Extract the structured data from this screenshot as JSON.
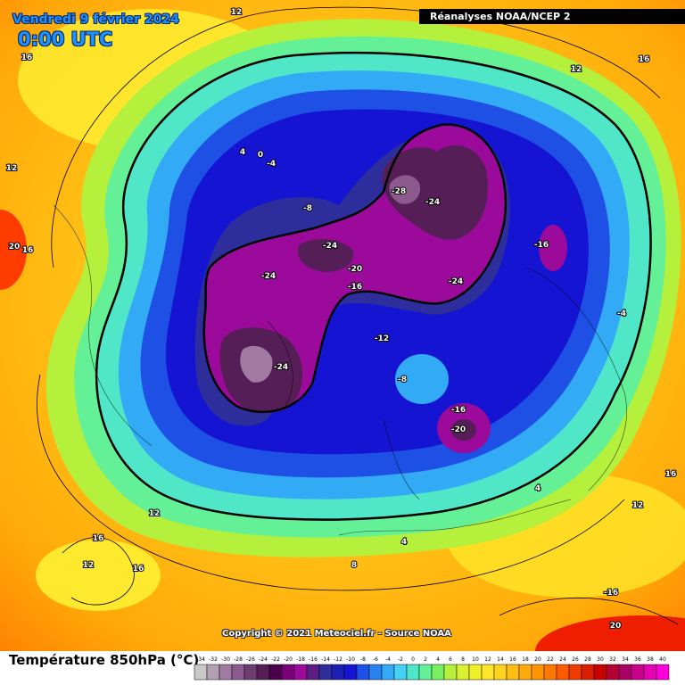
{
  "header": {
    "date": "Vendredi 9 février 2024",
    "time": "0:00 UTC",
    "source": "Réanalyses NOAA/NCEP 2"
  },
  "footer": {
    "title": "Température 850hPa (°C)",
    "copyright": "Copyright © 2021 Meteociel.fr - Source NOAA"
  },
  "legend_scale": {
    "values": [
      -34,
      -32,
      -30,
      -28,
      -26,
      -24,
      -22,
      -20,
      -18,
      -16,
      -14,
      -12,
      -10,
      -8,
      -6,
      -4,
      -2,
      0,
      2,
      4,
      6,
      8,
      10,
      12,
      14,
      16,
      18,
      20,
      22,
      24,
      26,
      28,
      30,
      32,
      34,
      36,
      38,
      40
    ],
    "colors": [
      "#c8c8c8",
      "#b4a0b4",
      "#a07aa0",
      "#8c5a8c",
      "#6e3c6e",
      "#561e56",
      "#4a004a",
      "#7a007a",
      "#9c0a9c",
      "#5a1e82",
      "#2d2d9c",
      "#1e1eb4",
      "#1414d2",
      "#1e50e6",
      "#2882f0",
      "#32aaf5",
      "#46d2f5",
      "#50e6c8",
      "#64f096",
      "#78f064",
      "#b4f03c",
      "#dcf032",
      "#f0f028",
      "#ffe628",
      "#ffd21e",
      "#ffbe14",
      "#ffaa0a",
      "#ff9600",
      "#ff7800",
      "#ff5a00",
      "#f03c00",
      "#dc1e00",
      "#c80000",
      "#b40032",
      "#aa0064",
      "#c8008c",
      "#e600b4",
      "#ff00dc"
    ]
  },
  "map_labels": [
    {
      "text": "12",
      "role": "contour-label"
    },
    {
      "text": "16",
      "role": "contour-label"
    },
    {
      "text": "12",
      "role": "contour-label"
    },
    {
      "text": "16",
      "role": "contour-label"
    },
    {
      "text": "12",
      "role": "contour-label"
    },
    {
      "text": "20",
      "role": "contour-label"
    },
    {
      "text": "16",
      "role": "contour-label"
    },
    {
      "text": "4",
      "role": "contour-label"
    },
    {
      "text": "0",
      "role": "contour-label"
    },
    {
      "text": "-4",
      "role": "contour-label"
    },
    {
      "text": "-8",
      "role": "contour-label"
    },
    {
      "text": "-28",
      "role": "contour-label"
    },
    {
      "text": "-24",
      "role": "contour-label"
    },
    {
      "text": "-16",
      "role": "contour-label"
    },
    {
      "text": "-24",
      "role": "contour-label"
    },
    {
      "text": "-20",
      "role": "contour-label"
    },
    {
      "text": "-24",
      "role": "contour-label"
    },
    {
      "text": "-16",
      "role": "contour-label"
    },
    {
      "text": "-24",
      "role": "contour-label"
    },
    {
      "text": "-4",
      "role": "contour-label"
    },
    {
      "text": "-12",
      "role": "contour-label"
    },
    {
      "text": "-24",
      "role": "contour-label"
    },
    {
      "text": "-8",
      "role": "contour-label"
    },
    {
      "text": "-16",
      "role": "contour-label"
    },
    {
      "text": "-20",
      "role": "contour-label"
    },
    {
      "text": "16",
      "role": "contour-label"
    },
    {
      "text": "4",
      "role": "contour-label"
    },
    {
      "text": "12",
      "role": "contour-label"
    },
    {
      "text": "12",
      "role": "contour-label"
    },
    {
      "text": "16",
      "role": "contour-label"
    },
    {
      "text": "4",
      "role": "contour-label"
    },
    {
      "text": "12",
      "role": "contour-label"
    },
    {
      "text": "16",
      "role": "contour-label"
    },
    {
      "text": "8",
      "role": "contour-label"
    },
    {
      "text": "-16",
      "role": "contour-label"
    },
    {
      "text": "20",
      "role": "contour-label"
    }
  ]
}
